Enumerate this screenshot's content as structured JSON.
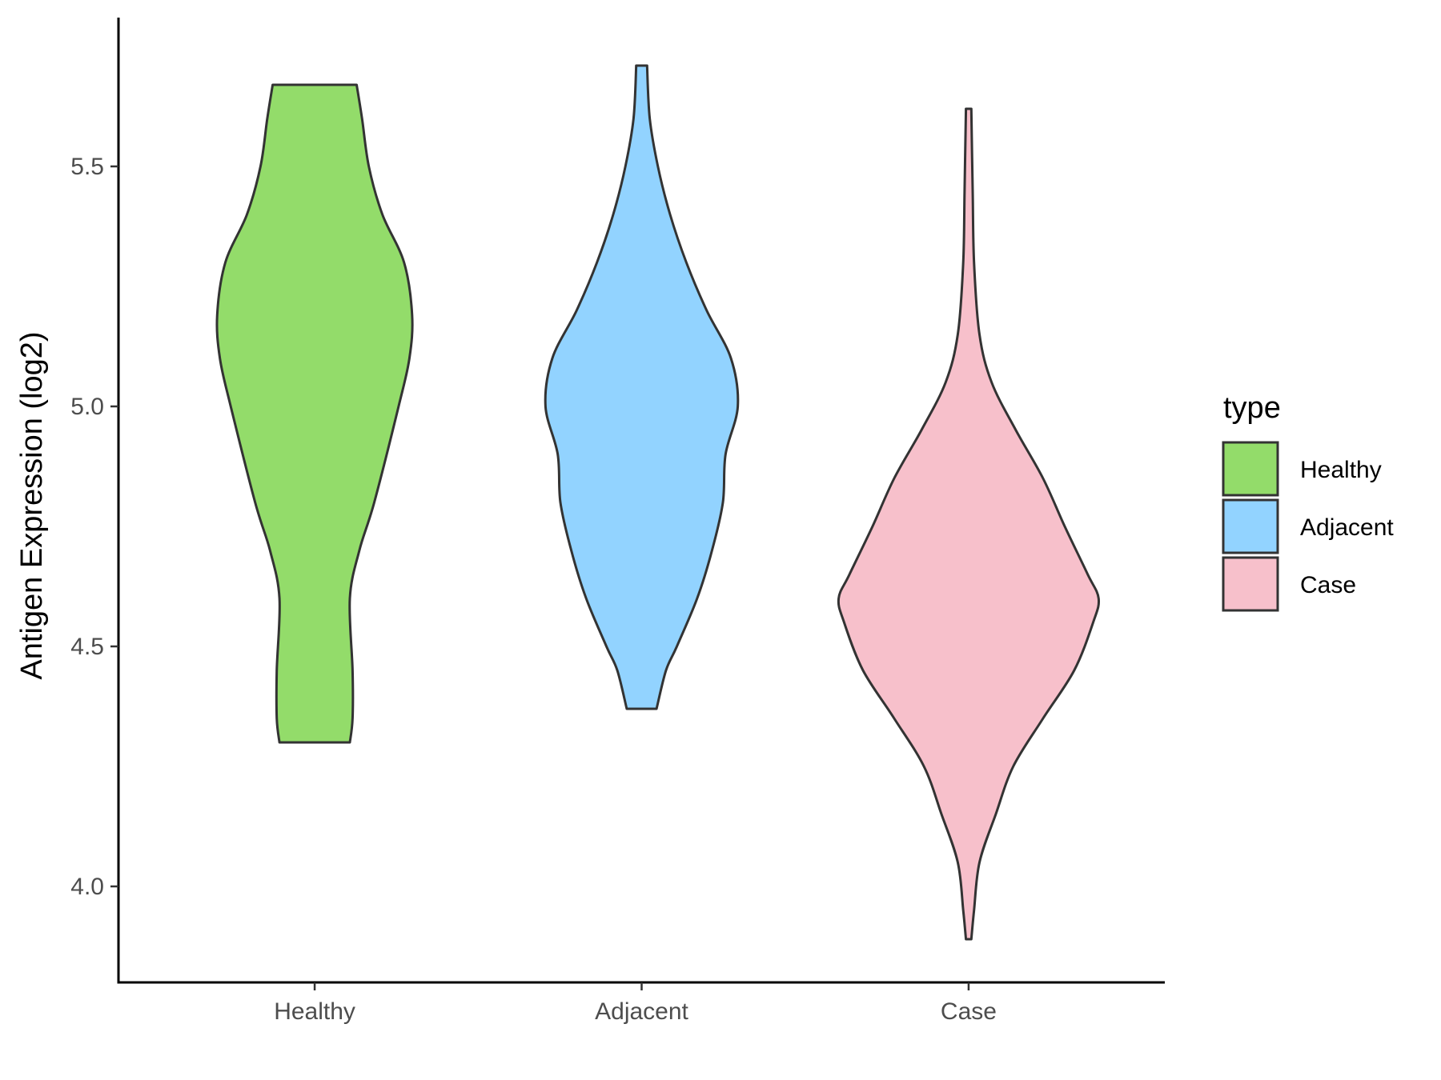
{
  "chart_data": {
    "type": "violin",
    "ylabel": "Antigen Expression (log2)",
    "xlabel": "",
    "ylim": [
      3.8,
      5.81
    ],
    "yticks": [
      4.0,
      4.5,
      5.0,
      5.5
    ],
    "ytick_labels": [
      "4.0",
      "4.5",
      "5.0",
      "5.5"
    ],
    "categories": [
      "Healthy",
      "Adjacent",
      "Case"
    ],
    "legend": {
      "title": "type",
      "position": "right",
      "entries": [
        "Healthy",
        "Adjacent",
        "Case"
      ]
    },
    "series": [
      {
        "name": "Healthy",
        "color": "#93dc6a",
        "min": 4.3,
        "max": 5.67,
        "profile": [
          [
            4.3,
            0.26
          ],
          [
            4.35,
            0.28
          ],
          [
            4.45,
            0.28
          ],
          [
            4.6,
            0.26
          ],
          [
            4.7,
            0.33
          ],
          [
            4.8,
            0.44
          ],
          [
            5.0,
            0.62
          ],
          [
            5.1,
            0.7
          ],
          [
            5.19,
            0.72
          ],
          [
            5.3,
            0.66
          ],
          [
            5.4,
            0.5
          ],
          [
            5.5,
            0.4
          ],
          [
            5.6,
            0.35
          ],
          [
            5.67,
            0.31
          ]
        ]
      },
      {
        "name": "Adjacent",
        "color": "#92d3ff",
        "min": 4.37,
        "max": 5.71,
        "profile": [
          [
            4.37,
            0.11
          ],
          [
            4.45,
            0.18
          ],
          [
            4.5,
            0.26
          ],
          [
            4.6,
            0.41
          ],
          [
            4.7,
            0.52
          ],
          [
            4.8,
            0.6
          ],
          [
            4.9,
            0.62
          ],
          [
            5.0,
            0.71
          ],
          [
            5.1,
            0.66
          ],
          [
            5.2,
            0.48
          ],
          [
            5.3,
            0.33
          ],
          [
            5.4,
            0.21
          ],
          [
            5.5,
            0.12
          ],
          [
            5.6,
            0.06
          ],
          [
            5.71,
            0.04
          ]
        ]
      },
      {
        "name": "Case",
        "color": "#f7c0cb",
        "min": 3.89,
        "max": 5.62,
        "profile": [
          [
            3.89,
            0.02
          ],
          [
            3.95,
            0.04
          ],
          [
            4.05,
            0.08
          ],
          [
            4.15,
            0.2
          ],
          [
            4.25,
            0.33
          ],
          [
            4.35,
            0.55
          ],
          [
            4.45,
            0.78
          ],
          [
            4.55,
            0.92
          ],
          [
            4.6,
            0.96
          ],
          [
            4.65,
            0.88
          ],
          [
            4.75,
            0.71
          ],
          [
            4.85,
            0.55
          ],
          [
            4.95,
            0.35
          ],
          [
            5.05,
            0.17
          ],
          [
            5.15,
            0.08
          ],
          [
            5.3,
            0.04
          ],
          [
            5.45,
            0.03
          ],
          [
            5.62,
            0.02
          ]
        ]
      }
    ]
  }
}
